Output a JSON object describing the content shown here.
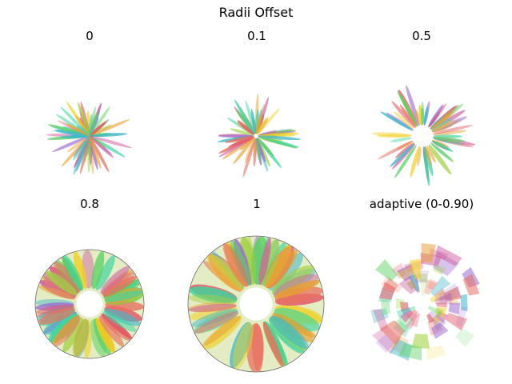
{
  "title": "Radii Offset",
  "chart_data": {
    "type": "polar-petal",
    "title": "Radii Offset",
    "panels": [
      {
        "label": "0",
        "offset": 0,
        "outline": false,
        "adaptive": false
      },
      {
        "label": "0.1",
        "offset": 0.1,
        "outline": false,
        "adaptive": false
      },
      {
        "label": "0.5",
        "offset": 0.5,
        "outline": false,
        "adaptive": false
      },
      {
        "label": "0.8",
        "offset": 0.8,
        "outline": true,
        "adaptive": false
      },
      {
        "label": "1",
        "offset": 1.0,
        "outline": true,
        "adaptive": false
      },
      {
        "label": "adaptive (0-0.90)",
        "offset_range": [
          0,
          0.9
        ],
        "outline": false,
        "adaptive": true
      }
    ],
    "palette": [
      "#3fd4a0",
      "#f0d020",
      "#e05a6a",
      "#9a6ad0",
      "#e8a030",
      "#5ad060",
      "#40b8c8",
      "#d060a0",
      "#a0d040",
      "#e87060"
    ]
  }
}
